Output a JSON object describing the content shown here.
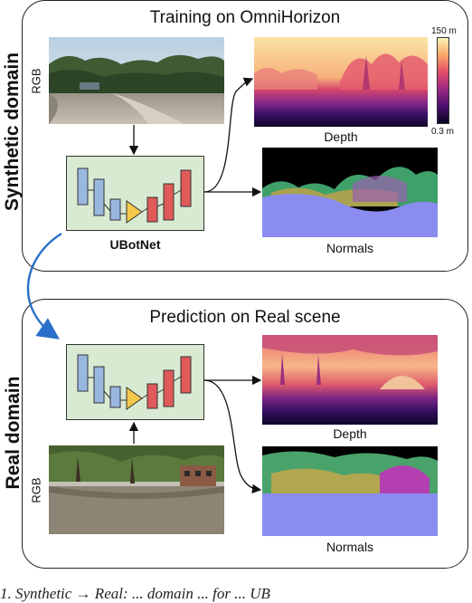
{
  "synthetic": {
    "side_label": "Synthetic domain",
    "title": "Training on OmniHorizon",
    "rgb_label": "RGB",
    "net_label": "UBotNet",
    "depth_caption": "Depth",
    "normals_caption": "Normals",
    "colorbar_max": "150 m",
    "colorbar_min": "0.3 m"
  },
  "real": {
    "side_label": "Real domain",
    "title": "Prediction on Real scene",
    "rgb_label": "RGB",
    "depth_caption": "Depth",
    "normals_caption": "Normals"
  },
  "caption_fragment": "1.   Synthetic → Real:  ... domain  ... for ... UB",
  "colors": {
    "net_bg": "#d9ead3",
    "encoder_blue": "#9ab7e0",
    "bottleneck_yellow": "#f4c84a",
    "decoder_red": "#e05a5a",
    "transfer_arrow": "#2a6fc9",
    "normals_floor": "#8a8cf0"
  }
}
